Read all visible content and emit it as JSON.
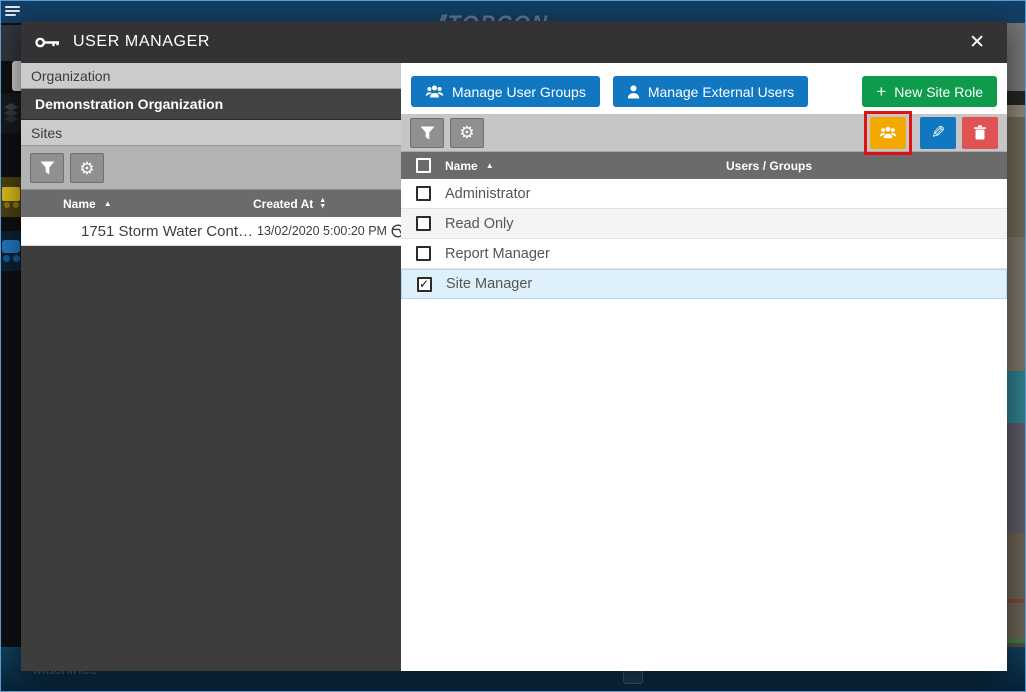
{
  "topbar": {
    "logo_text": "TOPCON",
    "logo_mark": "//"
  },
  "bottom_bar": {
    "label": "Machines"
  },
  "modal": {
    "title": "USER MANAGER",
    "close": "✕"
  },
  "icons": {
    "sort_asc": "▲",
    "sort_up": "▲",
    "sort_down": "▼",
    "gear": "⚙",
    "pencil": "✎",
    "check": "✓",
    "plus": "+"
  },
  "left_panel": {
    "organization_header": "Organization",
    "organization_name": "Demonstration Organization",
    "sites_header": "Sites",
    "sites_table": {
      "name_header": "Name",
      "created_header": "Created At",
      "rows": [
        {
          "name": "1751 Storm Water Cont…",
          "created_at": "13/02/2020 5:00:20 PM"
        }
      ]
    }
  },
  "right_panel": {
    "manage_user_groups_label": "Manage User Groups",
    "manage_external_users_label": "Manage External Users",
    "new_site_role_label": "New Site Role",
    "roles_table": {
      "name_header": "Name",
      "users_groups_header": "Users / Groups",
      "rows": [
        {
          "name": "Administrator",
          "checked": false,
          "users_groups": ""
        },
        {
          "name": "Read Only",
          "checked": false,
          "users_groups": ""
        },
        {
          "name": "Report Manager",
          "checked": false,
          "users_groups": ""
        },
        {
          "name": "Site Manager",
          "checked": true,
          "users_groups": ""
        }
      ]
    }
  },
  "colors": {
    "topbar_blue": "#123f66",
    "modal_titlebar": "#333335",
    "accent_blue": "#1177c0",
    "accent_green": "#0f9b4c",
    "accent_orange": "#f2a800",
    "accent_red": "#e15352",
    "highlight_red": "#e31212",
    "selected_row_blue": "#def0fb",
    "table_header_gray": "#6b6b6b"
  }
}
